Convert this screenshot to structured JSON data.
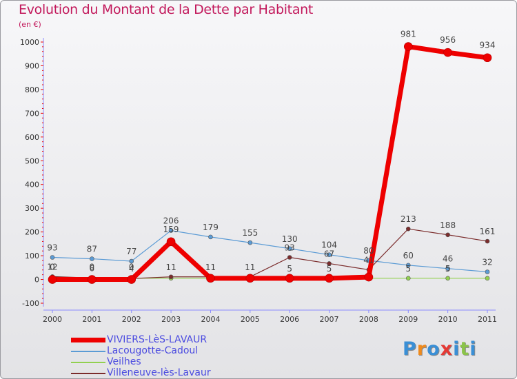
{
  "header": {
    "title": "Evolution du Montant de la Dette par Habitant",
    "subtitle": "(en €)"
  },
  "chart_data": {
    "type": "line",
    "title": "Evolution du Montant de la Dette par Habitant",
    "ylabel": "(en €)",
    "xlabel": "",
    "x": [
      "2000",
      "2001",
      "2002",
      "2003",
      "2004",
      "2005",
      "2006",
      "2007",
      "2008",
      "2009",
      "2010",
      "2011"
    ],
    "ylim": [
      -100,
      1000
    ],
    "yticks": [
      -100,
      0,
      100,
      200,
      300,
      400,
      500,
      600,
      700,
      800,
      900,
      1000
    ],
    "ytick_labels": [
      "-100",
      "0",
      "100",
      "200",
      "300",
      "400",
      "500",
      "600",
      "700",
      "800",
      "900",
      "1000"
    ],
    "grid": false,
    "legend_position": "bottom-left",
    "series": [
      {
        "name": "VIVIERS-LèS-LAVAUR",
        "color": "#ee0000",
        "values": [
          0,
          0,
          0,
          159,
          5,
          5,
          5,
          5,
          10,
          981,
          956,
          934
        ],
        "labels": [
          "0",
          "0",
          "0",
          "159",
          "",
          "",
          "",
          "",
          "",
          "981",
          "956",
          "934"
        ]
      },
      {
        "name": "Lacougotte-Cadoul",
        "color": "#5b9bd5",
        "values": [
          93,
          87,
          77,
          206,
          179,
          155,
          130,
          104,
          80,
          60,
          46,
          32
        ],
        "labels": [
          "93",
          "87",
          "77",
          "206",
          "179",
          "155",
          "130",
          "104",
          "80",
          "60",
          "46",
          "32"
        ]
      },
      {
        "name": "Veilhes",
        "color": "#92d050",
        "values": [
          5,
          5,
          5,
          5,
          5,
          5,
          5,
          5,
          5,
          5,
          5,
          5
        ],
        "labels": [
          "",
          "",
          "",
          "",
          "",
          "",
          "5",
          "5",
          "",
          "5",
          "5",
          ""
        ]
      },
      {
        "name": "Villeneuve-lès-Lavaur",
        "color": "#7b2c2c",
        "values": [
          12,
          6,
          4,
          11,
          11,
          11,
          93,
          67,
          41,
          213,
          188,
          161
        ],
        "labels": [
          "12",
          "6",
          "4",
          "11",
          "11",
          "11",
          "93",
          "67",
          "41",
          "213",
          "188",
          "161"
        ]
      }
    ]
  },
  "legend": {
    "items": [
      {
        "label": "VIVIERS-LèS-LAVAUR"
      },
      {
        "label": "Lacougotte-Cadoul"
      },
      {
        "label": "Veilhes"
      },
      {
        "label": "Villeneuve-lès-Lavaur"
      }
    ]
  },
  "logo": {
    "letters": [
      "P",
      "r",
      "o",
      "x",
      "i",
      "t",
      "i"
    ],
    "colors": [
      "#3a8fd6",
      "#f08a1c",
      "#3a8fd6",
      "#e53935",
      "#3a8fd6",
      "#8bc34a",
      "#3a8fd6"
    ]
  }
}
